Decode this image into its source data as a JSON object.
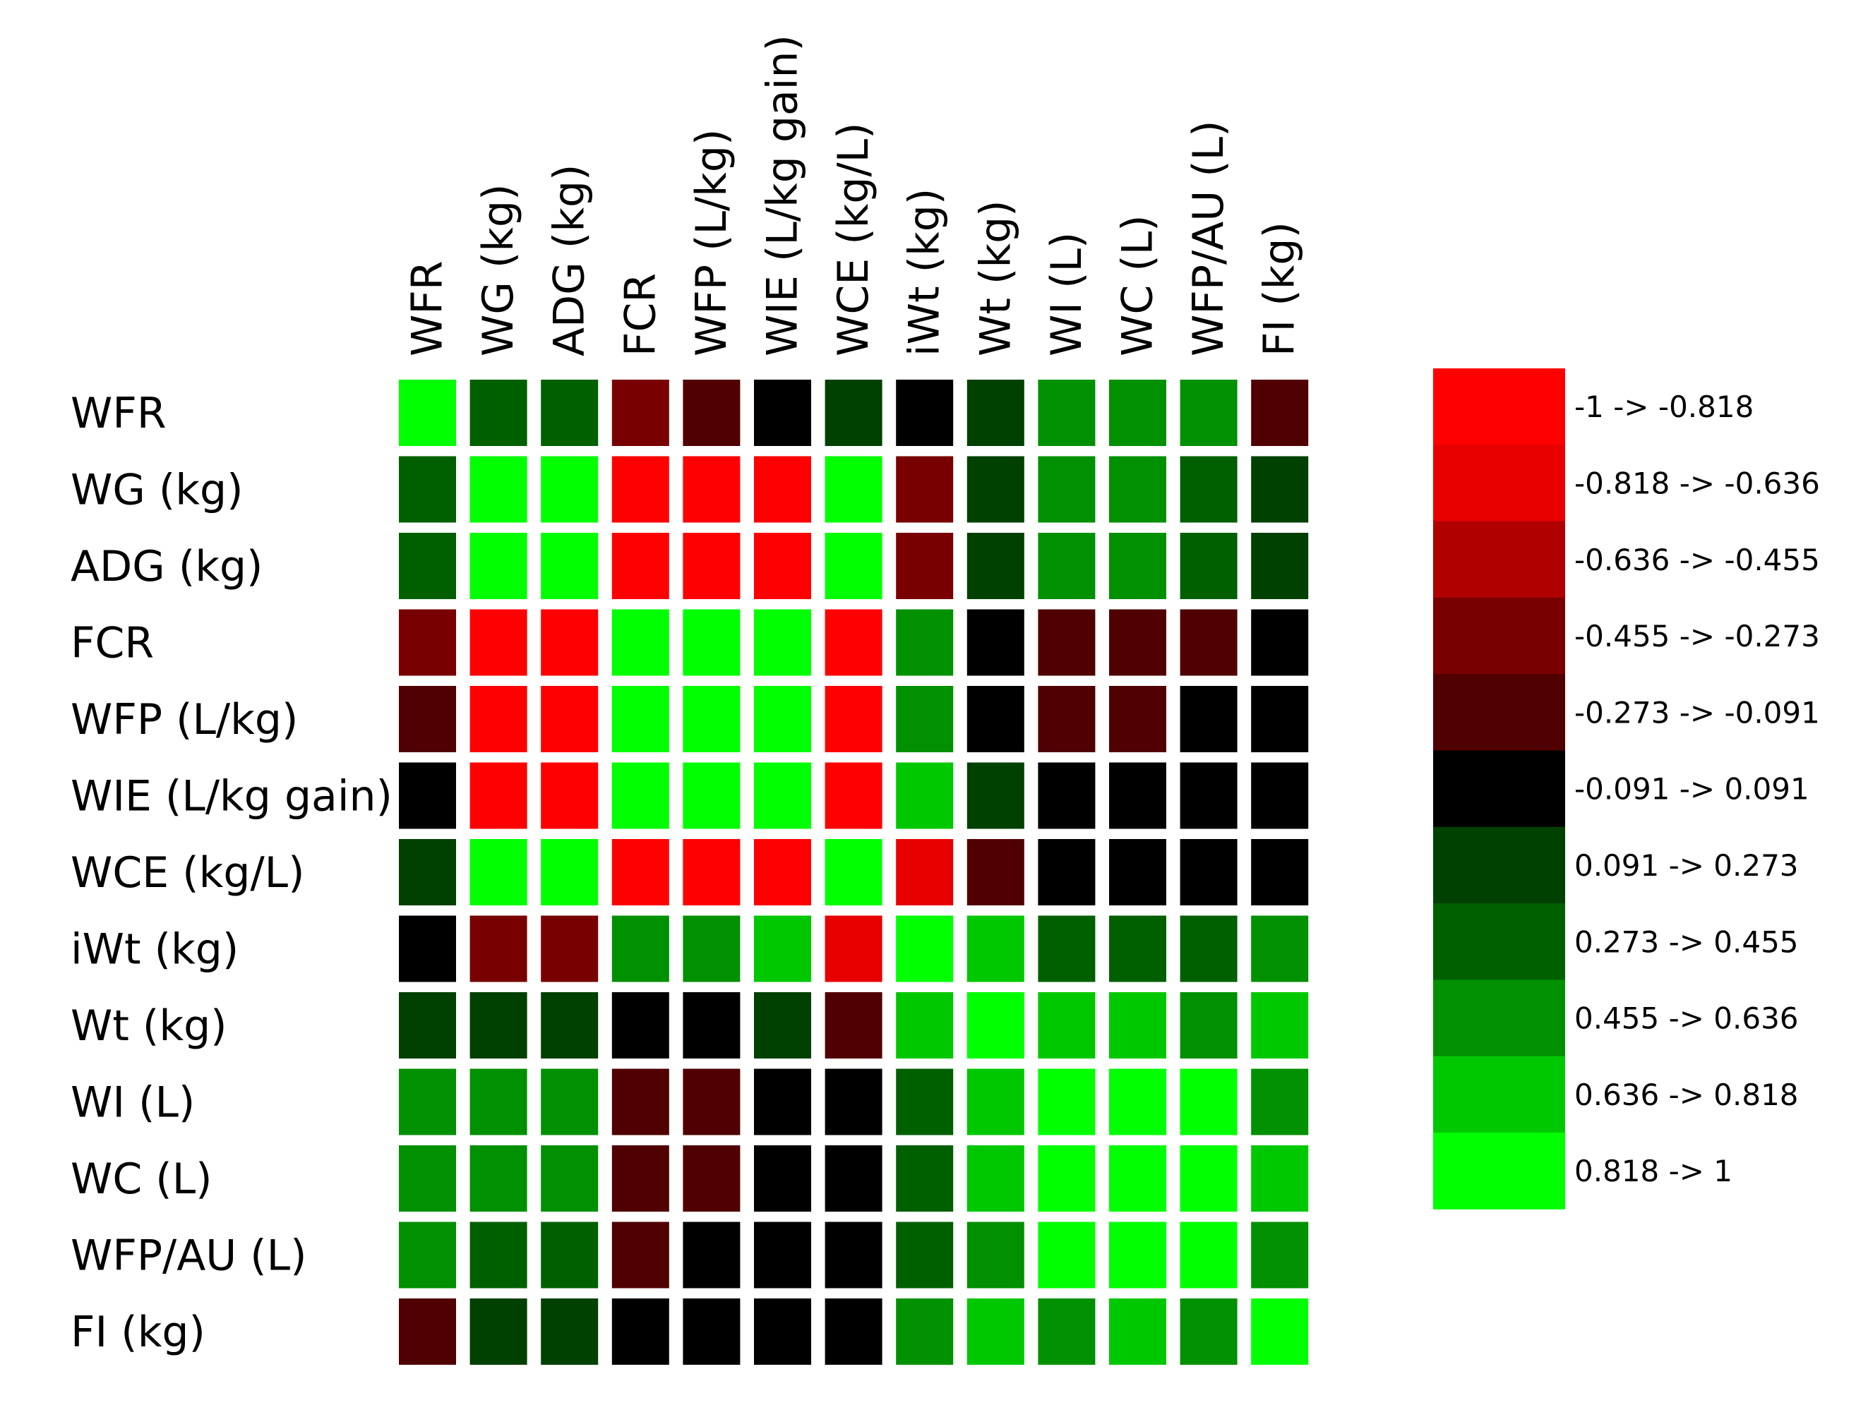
{
  "chart_data": {
    "type": "heatmap",
    "title": "",
    "variables": [
      "WFR",
      "WG (kg)",
      "ADG (kg)",
      "FCR",
      "WFP (L/kg)",
      "WIE (L/kg gain)",
      "WCE (kg/L)",
      "iWt (kg)",
      "Wt (kg)",
      "WI (L)",
      "WC (L)",
      "WFP/AU (L)",
      "FI (kg)"
    ],
    "legend": {
      "placement": "right",
      "bins": [
        {
          "label": "-1 -> -0.818",
          "range": [
            -1,
            -0.818
          ],
          "color": "#FF0000"
        },
        {
          "label": "-0.818 -> -0.636",
          "range": [
            -0.818,
            -0.636
          ],
          "color": "#E80000"
        },
        {
          "label": "-0.636 -> -0.455",
          "range": [
            -0.636,
            -0.455
          ],
          "color": "#B00000"
        },
        {
          "label": "-0.455 -> -0.273",
          "range": [
            -0.455,
            -0.273
          ],
          "color": "#780000"
        },
        {
          "label": "-0.273 -> -0.091",
          "range": [
            -0.273,
            -0.091
          ],
          "color": "#500000"
        },
        {
          "label": "-0.091 -> 0.091",
          "range": [
            -0.091,
            0.091
          ],
          "color": "#000000"
        },
        {
          "label": "0.091 -> 0.273",
          "range": [
            0.091,
            0.273
          ],
          "color": "#004000"
        },
        {
          "label": "0.273 -> 0.455",
          "range": [
            0.273,
            0.455
          ],
          "color": "#006000"
        },
        {
          "label": "0.455 -> 0.636",
          "range": [
            0.455,
            0.636
          ],
          "color": "#009000"
        },
        {
          "label": "0.636 -> 0.818",
          "range": [
            0.636,
            0.818
          ],
          "color": "#00C800"
        },
        {
          "label": "0.818 -> 1",
          "range": [
            0.818,
            1
          ],
          "color": "#00FF00"
        }
      ]
    },
    "cell_bin_index_note": "each matrix value is the legend bin index (0 = -1..-0.818, 10 = 0.818..1)",
    "matrix_bins": [
      [
        10,
        7,
        7,
        3,
        4,
        5,
        6,
        5,
        6,
        8,
        8,
        8,
        4
      ],
      [
        7,
        10,
        10,
        0,
        0,
        0,
        10,
        3,
        6,
        8,
        8,
        7,
        6
      ],
      [
        7,
        10,
        10,
        0,
        0,
        0,
        10,
        3,
        6,
        8,
        8,
        7,
        6
      ],
      [
        3,
        0,
        0,
        10,
        10,
        10,
        0,
        8,
        5,
        4,
        4,
        4,
        5
      ],
      [
        4,
        0,
        0,
        10,
        10,
        10,
        0,
        8,
        5,
        4,
        4,
        5,
        5
      ],
      [
        5,
        0,
        0,
        10,
        10,
        10,
        0,
        9,
        6,
        5,
        5,
        5,
        5
      ],
      [
        6,
        10,
        10,
        0,
        0,
        0,
        10,
        1,
        4,
        5,
        5,
        5,
        5
      ],
      [
        5,
        3,
        3,
        8,
        8,
        9,
        1,
        10,
        9,
        7,
        7,
        7,
        8
      ],
      [
        6,
        6,
        6,
        5,
        5,
        6,
        4,
        9,
        10,
        9,
        9,
        8,
        9
      ],
      [
        8,
        8,
        8,
        4,
        4,
        5,
        5,
        7,
        9,
        10,
        10,
        10,
        8
      ],
      [
        8,
        8,
        8,
        4,
        4,
        5,
        5,
        7,
        9,
        10,
        10,
        10,
        9
      ],
      [
        8,
        7,
        7,
        4,
        5,
        5,
        5,
        7,
        8,
        10,
        10,
        10,
        8
      ],
      [
        4,
        6,
        6,
        5,
        5,
        5,
        5,
        8,
        9,
        8,
        9,
        8,
        10
      ]
    ]
  }
}
